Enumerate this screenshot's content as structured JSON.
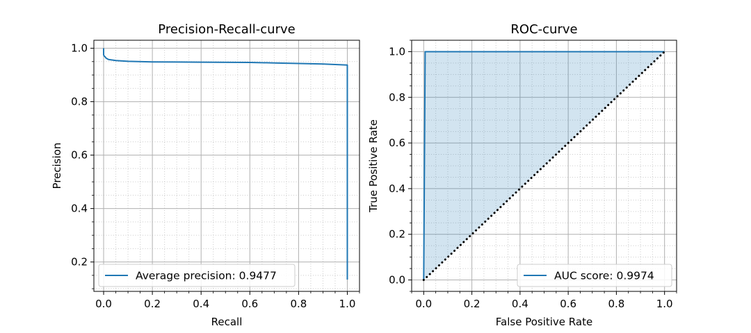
{
  "chart_data": [
    {
      "type": "line",
      "title": "Precision-Recall-curve",
      "xlabel": "Recall",
      "ylabel": "Precision",
      "xlim": [
        -0.04,
        1.05
      ],
      "ylim": [
        0.09,
        1.03
      ],
      "xticks": [
        0.0,
        0.2,
        0.4,
        0.6,
        0.8,
        1.0
      ],
      "xtick_labels": [
        "0.0",
        "0.2",
        "0.4",
        "0.6",
        "0.8",
        "1.0"
      ],
      "yticks": [
        0.2,
        0.4,
        0.6,
        0.8,
        1.0
      ],
      "ytick_labels": [
        "0.2",
        "0.4",
        "0.6",
        "0.8",
        "1.0"
      ],
      "grid": "major solid, minor dotted",
      "legend_position": "lower-left",
      "series": [
        {
          "name": "Average precision: 0.9477",
          "color": "#1f77b4",
          "x": [
            0.0,
            0.0,
            0.003,
            0.006,
            0.01,
            0.02,
            0.05,
            0.1,
            0.2,
            0.4,
            0.6,
            0.7,
            0.8,
            0.9,
            0.95,
            1.0,
            1.0
          ],
          "y": [
            1.0,
            0.975,
            0.97,
            0.968,
            0.963,
            0.958,
            0.954,
            0.951,
            0.949,
            0.948,
            0.947,
            0.945,
            0.943,
            0.941,
            0.939,
            0.937,
            0.134
          ]
        }
      ]
    },
    {
      "type": "line",
      "title": "ROC-curve",
      "xlabel": "False Positive Rate",
      "ylabel": "True Positive Rate",
      "xlim": [
        -0.05,
        1.05
      ],
      "ylim": [
        -0.05,
        1.05
      ],
      "xticks": [
        0.0,
        0.2,
        0.4,
        0.6,
        0.8,
        1.0
      ],
      "xtick_labels": [
        "0.0",
        "0.2",
        "0.4",
        "0.6",
        "0.8",
        "1.0"
      ],
      "yticks": [
        0.0,
        0.2,
        0.4,
        0.6,
        0.8,
        1.0
      ],
      "ytick_labels": [
        "0.0",
        "0.2",
        "0.4",
        "0.6",
        "0.8",
        "1.0"
      ],
      "grid": "major solid, minor dotted",
      "legend_position": "lower-right",
      "fill_between_curve_and_diagonal": true,
      "fill_color": "#1f77b4",
      "series": [
        {
          "name": "AUC score: 0.9974",
          "color": "#1f77b4",
          "x": [
            0.0,
            0.003,
            0.006,
            0.01,
            1.0
          ],
          "y": [
            0.0,
            0.5,
            1.0,
            1.0,
            1.0
          ]
        },
        {
          "name": "",
          "color": "#000000",
          "style": "dotted",
          "x": [
            0.0,
            1.0
          ],
          "y": [
            0.0,
            1.0
          ]
        }
      ]
    }
  ]
}
